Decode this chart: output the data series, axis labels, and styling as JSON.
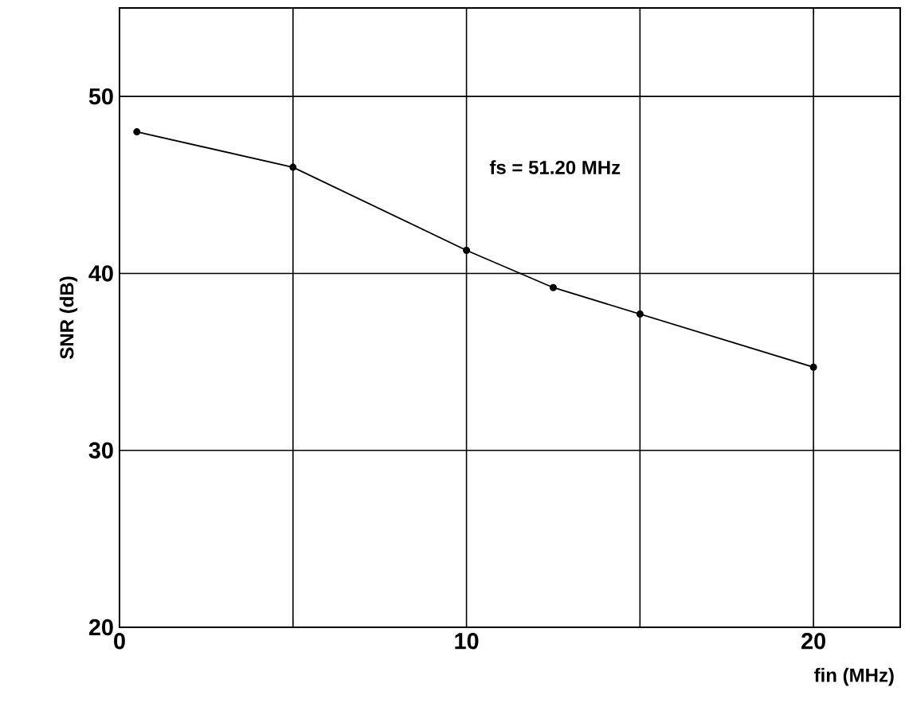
{
  "chart_data": {
    "type": "line",
    "xlabel": "fin (MHz)",
    "ylabel": "SNR (dB)",
    "annotations": [
      "fs = 51.20 MHz"
    ],
    "x": [
      0.5,
      5,
      10,
      12.5,
      15,
      20
    ],
    "series": [
      {
        "color": "#000000",
        "values": [
          48,
          46,
          41.3,
          39.2,
          37.7,
          34.7
        ]
      }
    ],
    "xlim": [
      0,
      22.5
    ],
    "ylim": [
      20,
      55
    ],
    "xticks": [
      0,
      {
        "value": 5,
        "label": null
      },
      10,
      {
        "value": 15,
        "label": null
      },
      20
    ],
    "yticks": [
      20,
      30,
      40,
      50
    ],
    "grid": true,
    "marker": "circle",
    "line_style": "solid"
  }
}
